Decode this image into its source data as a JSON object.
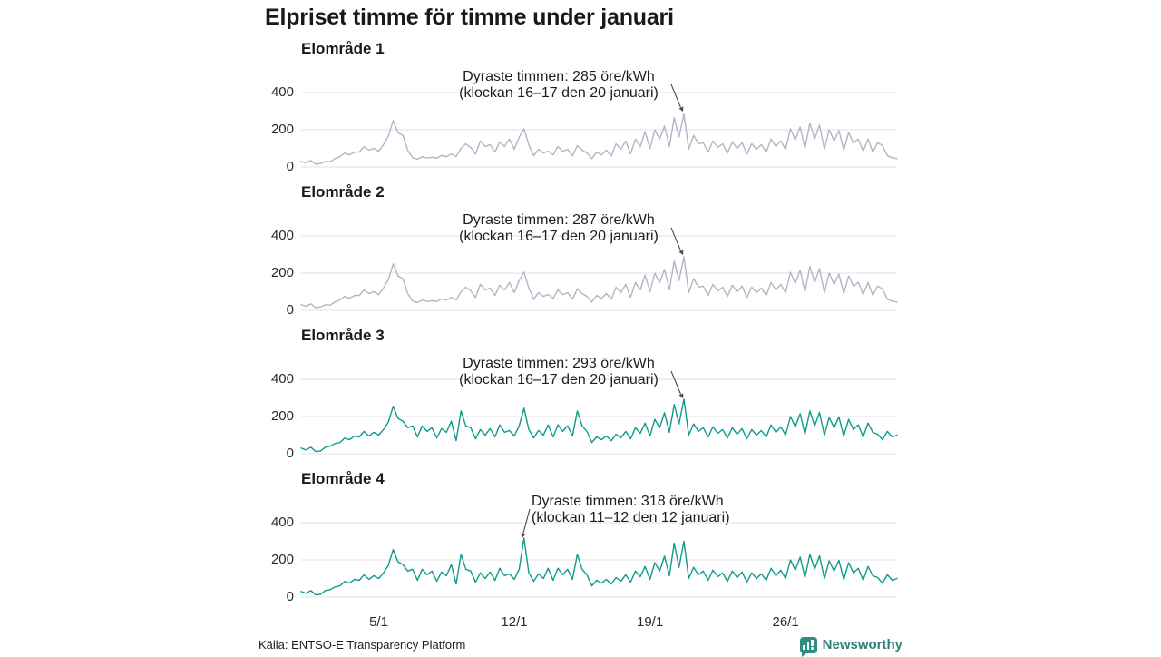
{
  "title": "Elpriset timme för timme under januari",
  "source": "Källa: ENTSO-E Transparency Platform",
  "branding": {
    "name": "Newsworthy",
    "icon": "bar-chart-speech-bubble-icon"
  },
  "colors": {
    "north": "#b5b3c6",
    "south": "#0f9a8c",
    "grid": "#e1e1e6",
    "arrow": "#4a4a4a",
    "brand": "#2e7f78",
    "text": "#191919"
  },
  "unit": "öre/kWh",
  "y_axis": {
    "labels": [
      "400",
      "200",
      "0"
    ],
    "ticks": [
      400,
      200,
      0
    ],
    "ylim": [
      0,
      450
    ]
  },
  "x_axis": {
    "ticks": [
      {
        "label": "5/1",
        "day": 5
      },
      {
        "label": "12/1",
        "day": 12
      },
      {
        "label": "19/1",
        "day": 19
      },
      {
        "label": "26/1",
        "day": 26
      }
    ],
    "start_day": 1,
    "end_day": 31,
    "points_per_day": 4,
    "description": "January, 4 samples per day (values in öre/kWh)"
  },
  "chart_data": [
    {
      "type": "line",
      "title": "Elområde 1",
      "color_key": "north",
      "max_value": 285,
      "annotation": {
        "line1": "Dyraste timmen: 285 öre/kWh",
        "line2": "(klockan 16–17 den 20 januari)"
      },
      "values": [
        30,
        22,
        35,
        15,
        18,
        30,
        28,
        45,
        55,
        75,
        65,
        80,
        80,
        110,
        90,
        100,
        85,
        120,
        165,
        250,
        185,
        170,
        90,
        50,
        42,
        55,
        48,
        52,
        48,
        62,
        55,
        70,
        55,
        100,
        125,
        105,
        70,
        140,
        110,
        120,
        80,
        135,
        110,
        150,
        95,
        160,
        205,
        120,
        60,
        95,
        75,
        85,
        65,
        110,
        85,
        95,
        60,
        115,
        90,
        75,
        45,
        80,
        65,
        90,
        60,
        125,
        95,
        140,
        70,
        150,
        110,
        190,
        100,
        200,
        150,
        220,
        110,
        265,
        160,
        285,
        95,
        170,
        125,
        130,
        80,
        140,
        105,
        125,
        75,
        135,
        100,
        130,
        70,
        125,
        95,
        120,
        80,
        150,
        110,
        140,
        95,
        205,
        145,
        215,
        100,
        235,
        150,
        225,
        95,
        200,
        140,
        195,
        90,
        185,
        130,
        150,
        85,
        150,
        80,
        130,
        115,
        60,
        50,
        45
      ]
    },
    {
      "type": "line",
      "title": "Elområde 2",
      "color_key": "north",
      "max_value": 287,
      "annotation": {
        "line1": "Dyraste timmen: 287 öre/kWh",
        "line2": "(klockan 16–17 den 20 januari)"
      },
      "values": [
        30,
        22,
        35,
        15,
        18,
        30,
        28,
        45,
        55,
        75,
        65,
        80,
        80,
        110,
        90,
        100,
        85,
        120,
        165,
        250,
        185,
        170,
        90,
        50,
        42,
        55,
        48,
        52,
        48,
        62,
        55,
        70,
        55,
        100,
        125,
        105,
        70,
        140,
        110,
        120,
        80,
        135,
        110,
        150,
        95,
        160,
        205,
        120,
        60,
        95,
        75,
        85,
        65,
        110,
        85,
        95,
        60,
        115,
        90,
        75,
        45,
        80,
        65,
        90,
        60,
        125,
        95,
        140,
        70,
        150,
        110,
        190,
        100,
        200,
        150,
        220,
        110,
        265,
        160,
        287,
        95,
        170,
        125,
        130,
        80,
        140,
        105,
        125,
        75,
        135,
        100,
        130,
        70,
        125,
        95,
        120,
        80,
        150,
        110,
        140,
        95,
        205,
        145,
        215,
        100,
        235,
        150,
        225,
        95,
        200,
        140,
        195,
        90,
        185,
        130,
        150,
        85,
        150,
        80,
        130,
        115,
        60,
        50,
        45
      ]
    },
    {
      "type": "line",
      "title": "Elområde 3",
      "color_key": "south",
      "max_value": 293,
      "annotation": {
        "line1": "Dyraste timmen: 293 öre/kWh",
        "line2": "(klockan 16–17 den 20 januari)"
      },
      "values": [
        30,
        20,
        35,
        12,
        15,
        35,
        40,
        55,
        60,
        85,
        75,
        95,
        90,
        120,
        95,
        115,
        100,
        130,
        170,
        255,
        190,
        175,
        140,
        150,
        90,
        150,
        120,
        140,
        85,
        135,
        115,
        175,
        70,
        230,
        150,
        140,
        80,
        130,
        100,
        135,
        90,
        155,
        115,
        125,
        95,
        150,
        245,
        130,
        85,
        125,
        100,
        155,
        90,
        155,
        120,
        150,
        95,
        230,
        150,
        120,
        60,
        90,
        75,
        95,
        70,
        105,
        85,
        120,
        80,
        140,
        110,
        165,
        95,
        185,
        140,
        220,
        115,
        265,
        160,
        293,
        100,
        160,
        120,
        140,
        90,
        145,
        110,
        130,
        85,
        140,
        105,
        135,
        80,
        130,
        100,
        125,
        90,
        155,
        115,
        145,
        100,
        200,
        145,
        215,
        105,
        230,
        150,
        222,
        100,
        195,
        140,
        198,
        95,
        185,
        130,
        155,
        90,
        165,
        115,
        105,
        75,
        120,
        90,
        100
      ]
    },
    {
      "type": "line",
      "title": "Elområde 4",
      "color_key": "south",
      "max_value": 318,
      "annotation": {
        "line1": "Dyraste timmen: 318 öre/kWh",
        "line2": "(klockan 11–12 den 12 januari)"
      },
      "values": [
        30,
        20,
        35,
        12,
        15,
        35,
        40,
        55,
        60,
        85,
        75,
        95,
        90,
        120,
        95,
        115,
        100,
        130,
        170,
        255,
        190,
        175,
        140,
        150,
        90,
        150,
        120,
        140,
        85,
        135,
        115,
        175,
        70,
        230,
        150,
        140,
        80,
        130,
        100,
        135,
        90,
        155,
        115,
        125,
        95,
        150,
        318,
        130,
        85,
        125,
        100,
        155,
        90,
        155,
        120,
        150,
        95,
        230,
        150,
        120,
        60,
        90,
        75,
        95,
        70,
        105,
        85,
        120,
        80,
        140,
        110,
        165,
        95,
        185,
        140,
        220,
        115,
        290,
        160,
        300,
        100,
        160,
        120,
        140,
        90,
        145,
        110,
        130,
        85,
        140,
        105,
        135,
        80,
        130,
        100,
        125,
        90,
        155,
        115,
        145,
        100,
        200,
        145,
        215,
        105,
        230,
        150,
        222,
        100,
        195,
        140,
        198,
        95,
        185,
        130,
        155,
        90,
        165,
        115,
        105,
        75,
        120,
        90,
        100
      ]
    }
  ]
}
